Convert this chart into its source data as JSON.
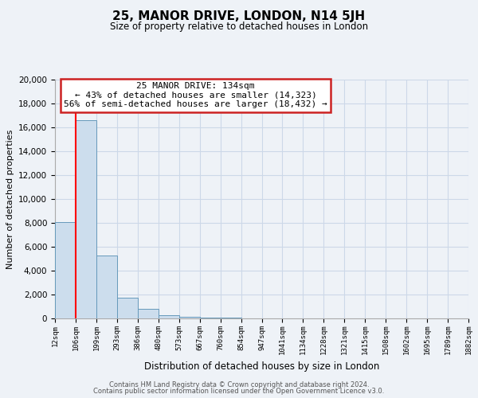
{
  "title": "25, MANOR DRIVE, LONDON, N14 5JH",
  "subtitle": "Size of property relative to detached houses in London",
  "xlabel": "Distribution of detached houses by size in London",
  "ylabel": "Number of detached properties",
  "bar_values": [
    8100,
    16600,
    5300,
    1750,
    800,
    300,
    150,
    100,
    80,
    0,
    0,
    0,
    0,
    0,
    0,
    0,
    0,
    0,
    0,
    0
  ],
  "bin_labels": [
    "12sqm",
    "106sqm",
    "199sqm",
    "293sqm",
    "386sqm",
    "480sqm",
    "573sqm",
    "667sqm",
    "760sqm",
    "854sqm",
    "947sqm",
    "1041sqm",
    "1134sqm",
    "1228sqm",
    "1321sqm",
    "1415sqm",
    "1508sqm",
    "1602sqm",
    "1695sqm",
    "1789sqm",
    "1882sqm"
  ],
  "bar_color": "#ccdded",
  "bar_edge_color": "#6699bb",
  "red_line_x": 1.0,
  "annotation_title": "25 MANOR DRIVE: 134sqm",
  "annotation_line1": "← 43% of detached houses are smaller (14,323)",
  "annotation_line2": "56% of semi-detached houses are larger (18,432) →",
  "ylim": [
    0,
    20000
  ],
  "yticks": [
    0,
    2000,
    4000,
    6000,
    8000,
    10000,
    12000,
    14000,
    16000,
    18000,
    20000
  ],
  "footer1": "Contains HM Land Registry data © Crown copyright and database right 2024.",
  "footer2": "Contains public sector information licensed under the Open Government Licence v3.0.",
  "background_color": "#eef2f7",
  "grid_color": "#ccd8e8"
}
